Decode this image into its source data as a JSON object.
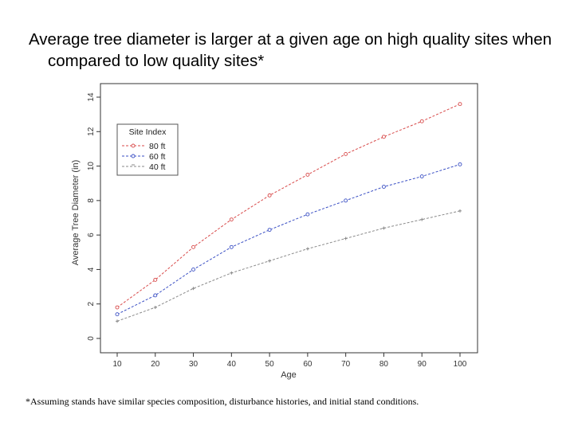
{
  "slide": {
    "title": "Average tree diameter is larger at a given age on high quality sites when compared to low quality sites*",
    "footnote": "*Assuming stands have similar species composition, disturbance histories, and initial stand conditions."
  },
  "chart_data": {
    "type": "line",
    "title": "",
    "xlabel": "Age",
    "ylabel": "Average Tree Diameter (in)",
    "x": [
      10,
      20,
      30,
      40,
      50,
      60,
      70,
      80,
      90,
      100
    ],
    "xlim": [
      10,
      100
    ],
    "ylim": [
      0,
      14
    ],
    "xticks": [
      "10",
      "20",
      "30",
      "40",
      "50",
      "60",
      "70",
      "80",
      "90",
      "100"
    ],
    "yticks": [
      "0",
      "2",
      "4",
      "6",
      "8",
      "10",
      "12",
      "14"
    ],
    "grid": false,
    "legend": {
      "title": "Site Index",
      "placement": "top-left"
    },
    "series": [
      {
        "name": "80 ft",
        "color": "#d84a4a",
        "marker": "circle",
        "values": [
          1.8,
          3.4,
          5.3,
          6.9,
          8.3,
          9.5,
          10.7,
          11.7,
          12.6,
          13.6
        ]
      },
      {
        "name": "60 ft",
        "color": "#3a4fc4",
        "marker": "circle",
        "values": [
          1.4,
          2.5,
          4.0,
          5.3,
          6.3,
          7.2,
          8.0,
          8.8,
          9.4,
          10.1
        ]
      },
      {
        "name": "40 ft",
        "color": "#8a8a8a",
        "marker": "cross",
        "values": [
          1.0,
          1.8,
          2.9,
          3.8,
          4.5,
          5.2,
          5.8,
          6.4,
          6.9,
          7.4
        ]
      }
    ]
  }
}
